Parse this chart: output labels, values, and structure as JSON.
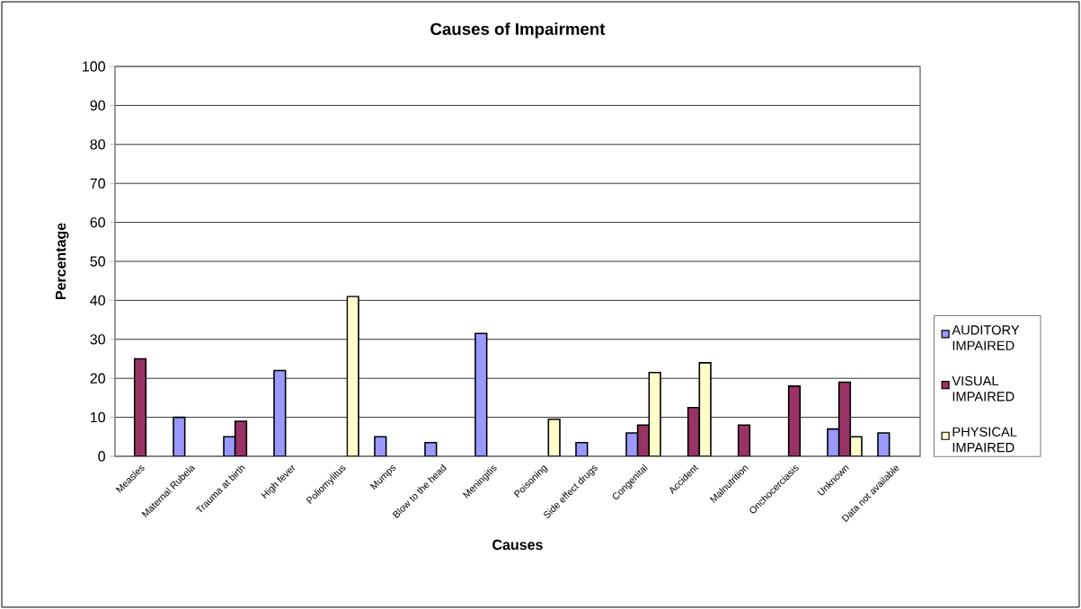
{
  "chart_data": {
    "type": "bar",
    "title": "Causes of Impairment",
    "xlabel": "Causes",
    "ylabel": "Percentage",
    "categories": [
      "Measles",
      "Maternal Rubela",
      "Trauma at birth",
      "High fever",
      "Poliomylitus",
      "Mumps",
      "Blow to the head",
      "Meningitis",
      "Poisoning",
      "Side effect drugs",
      "Congenital",
      "Accident",
      "Malnutrition",
      "Onchocerciasis",
      "Unknown",
      "Data not available"
    ],
    "series": [
      {
        "name": "AUDITORY IMPAIRED",
        "color": "#9999ff",
        "values": [
          null,
          10,
          5,
          22,
          null,
          5,
          3.5,
          31.5,
          null,
          3.5,
          6,
          null,
          null,
          null,
          7,
          6
        ]
      },
      {
        "name": "VISUAL IMPAIRED",
        "color": "#993366",
        "values": [
          25,
          null,
          9,
          null,
          null,
          null,
          null,
          null,
          null,
          null,
          8,
          12.5,
          8,
          18,
          19,
          null
        ]
      },
      {
        "name": "PHYSICAL IMPAIRED",
        "color": "#ffffcc",
        "values": [
          null,
          null,
          null,
          null,
          41,
          null,
          null,
          null,
          9.5,
          null,
          21.5,
          24,
          null,
          null,
          5,
          null
        ]
      }
    ],
    "ylim": [
      0,
      100
    ],
    "yticks": [
      0,
      10,
      20,
      30,
      40,
      50,
      60,
      70,
      80,
      90,
      100
    ],
    "grid": "y",
    "legend": "right"
  }
}
